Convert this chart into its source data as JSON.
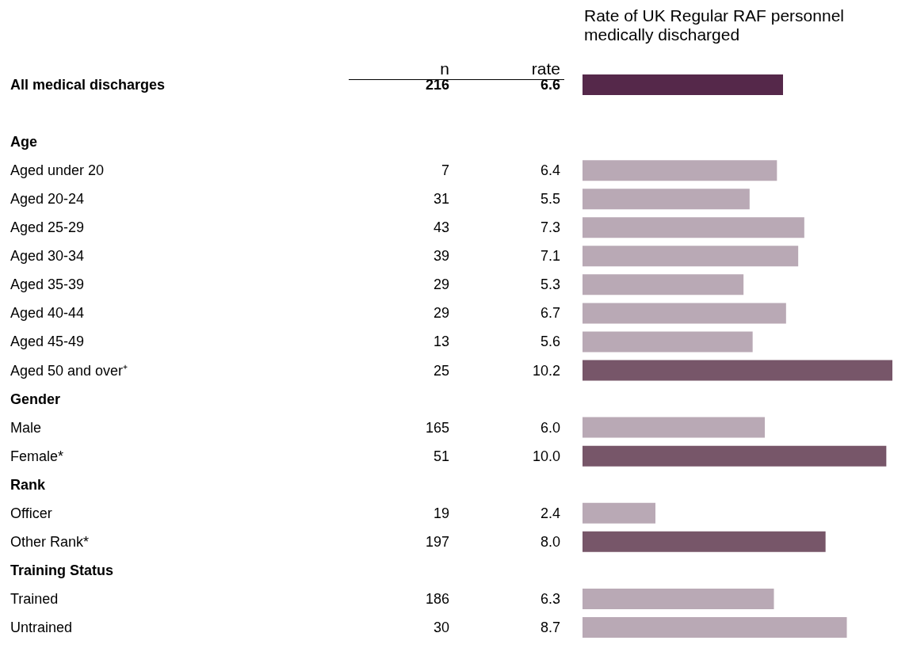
{
  "chart_data": {
    "type": "bar",
    "orientation": "horizontal",
    "title": "Rate of UK Regular RAF personnel medically discharged",
    "categories": [
      "All medical discharges",
      null,
      "Age",
      "Aged under 20",
      "Aged 20-24",
      "Aged 25-29",
      "Aged 30-34",
      "Aged 35-39",
      "Aged 40-44",
      "Aged 45-49",
      "Aged 50 and over⁺",
      "Gender",
      "Male",
      "Female*",
      "Rank",
      "Officer",
      "Other Rank*",
      "Training Status",
      "Trained",
      "Untrained"
    ],
    "values": [
      6.6,
      null,
      null,
      6.4,
      5.5,
      7.3,
      7.1,
      5.3,
      6.7,
      5.6,
      10.2,
      null,
      6.0,
      10.0,
      null,
      2.4,
      8.0,
      null,
      6.3,
      8.7
    ],
    "value_labels": [
      "6.6",
      null,
      null,
      "6.4",
      "5.5",
      "7.3",
      "7.1",
      "5.3",
      "6.7",
      "5.6",
      "10.2",
      null,
      "6.0",
      "10.0",
      null,
      "2.4",
      "8.0",
      null,
      "6.3",
      "8.7"
    ],
    "colors": [
      "#55284a",
      null,
      null,
      "#b9a9b5",
      "#b9a9b5",
      "#b9a9b5",
      "#b9a9b5",
      "#b9a9b5",
      "#b9a9b5",
      "#b9a9b5",
      "#775669",
      null,
      "#b9a9b5",
      "#775669",
      null,
      "#b9a9b5",
      "#775669",
      null,
      "#b9a9b5",
      "#b9a9b5"
    ],
    "annotations": [
      "n",
      "rate",
      "216",
      "7",
      "31",
      "43",
      "39",
      "29",
      "29",
      "13",
      "25",
      "165",
      "51",
      "19",
      "197",
      "186",
      "30"
    ]
  }
}
